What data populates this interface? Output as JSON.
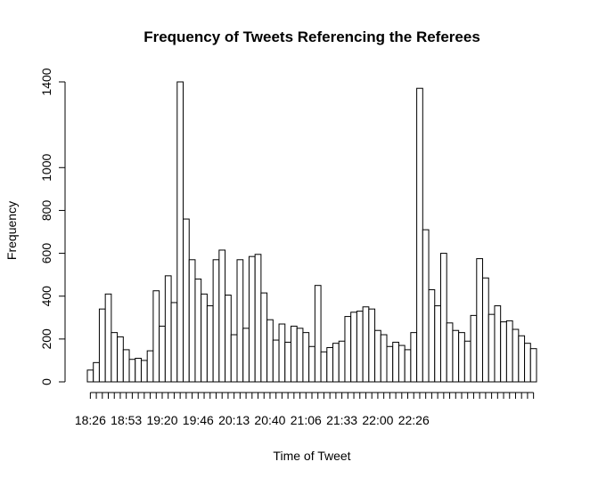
{
  "chart_data": {
    "type": "bar",
    "title": "Frequency of Tweets Referencing the Referees",
    "xlabel": "Time of Tweet",
    "ylabel": "Frequency",
    "ylim": [
      0,
      1400
    ],
    "y_ticks": [
      0,
      200,
      400,
      600,
      800,
      1000,
      1400
    ],
    "x_tick_labels": [
      "18:26",
      "18:53",
      "19:20",
      "19:46",
      "20:13",
      "20:40",
      "21:06",
      "21:33",
      "22:00",
      "22:26"
    ],
    "x_label_every": 6,
    "bar_fill": "#ffffff",
    "bar_stroke": "#000000",
    "grid": false,
    "values": [
      55,
      90,
      340,
      410,
      230,
      210,
      150,
      105,
      110,
      100,
      145,
      425,
      260,
      495,
      370,
      1400,
      760,
      570,
      480,
      410,
      355,
      570,
      615,
      405,
      220,
      570,
      250,
      585,
      595,
      415,
      290,
      195,
      270,
      185,
      260,
      250,
      230,
      165,
      450,
      140,
      160,
      180,
      190,
      305,
      325,
      330,
      350,
      340,
      240,
      220,
      165,
      185,
      170,
      150,
      230,
      1370,
      710,
      430,
      355,
      600,
      275,
      240,
      230,
      190,
      310,
      575,
      485,
      315,
      355,
      280,
      285,
      245,
      215,
      180,
      155
    ]
  }
}
